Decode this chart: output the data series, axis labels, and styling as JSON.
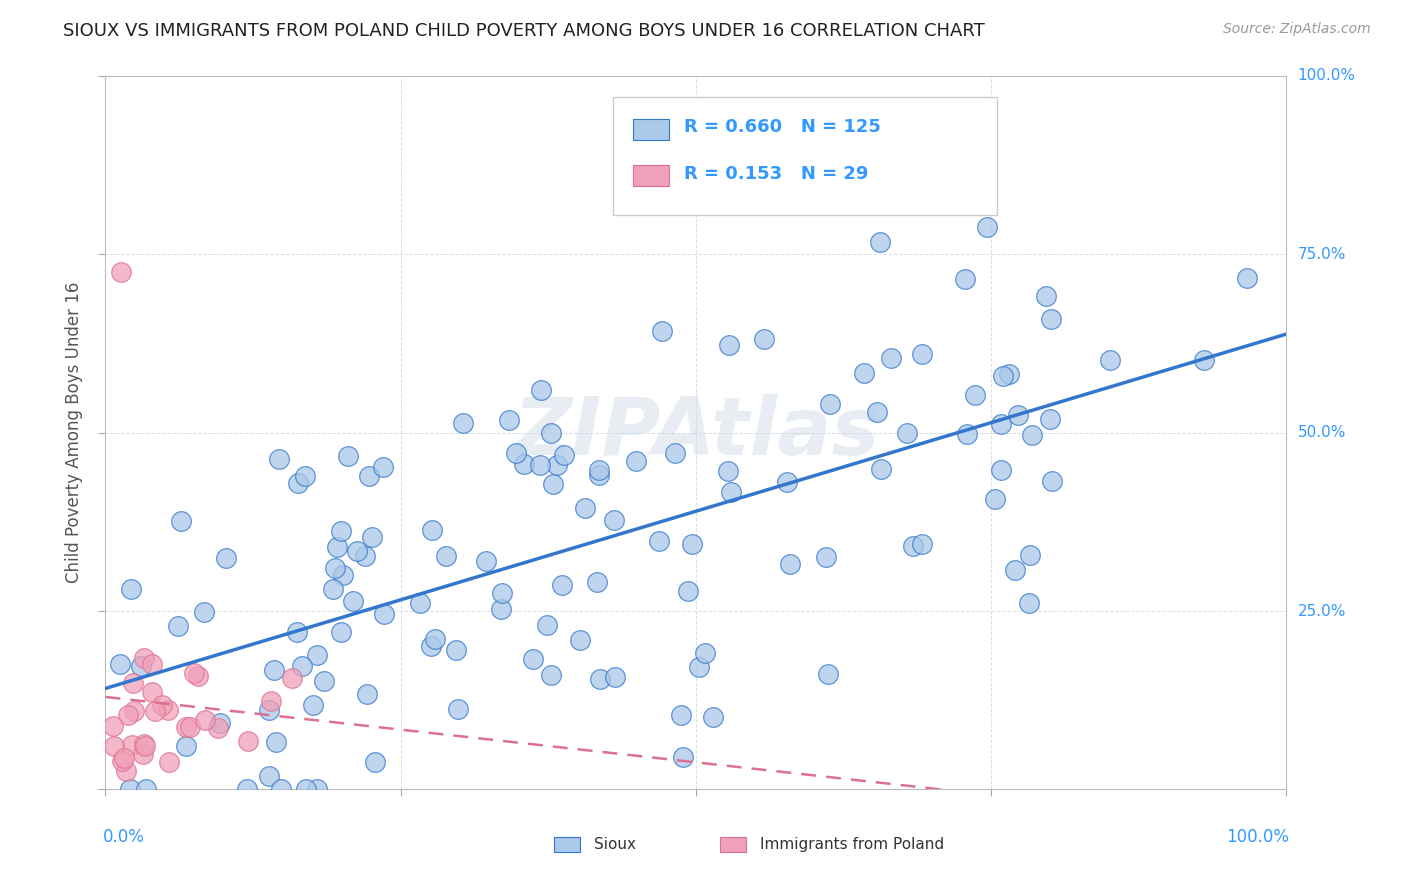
{
  "title": "SIOUX VS IMMIGRANTS FROM POLAND CHILD POVERTY AMONG BOYS UNDER 16 CORRELATION CHART",
  "source": "Source: ZipAtlas.com",
  "ylabel": "Child Poverty Among Boys Under 16",
  "watermark": "ZIPAtlas",
  "legend_sioux_R": 0.66,
  "legend_sioux_N": 125,
  "legend_poland_R": 0.153,
  "legend_poland_N": 29,
  "sioux_color": "#aac8e8",
  "poland_color": "#f0a0b8",
  "sioux_line_color": "#3377cc",
  "poland_line_color": "#dd7090",
  "grid_color": "#d0dde8",
  "background_color": "#ffffff",
  "tick_label_color": "#3399ff",
  "title_color": "#222222",
  "source_color": "#999999",
  "ylabel_color": "#555555"
}
